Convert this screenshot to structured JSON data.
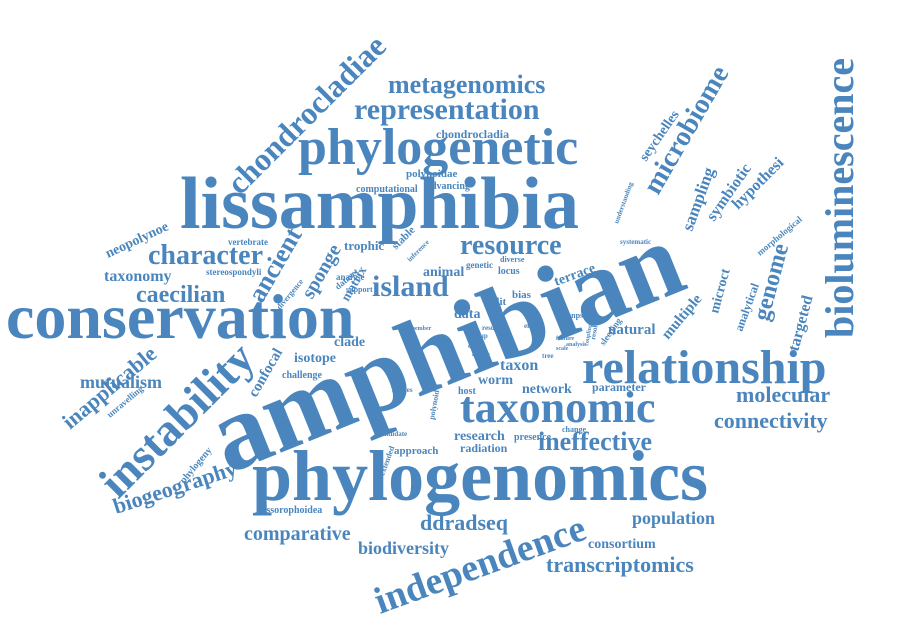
{
  "colors": {
    "word": "#4a86bd",
    "background": "#ffffff"
  },
  "words": {
    "amphibian": "amphibian",
    "phylogenomics": "phylogenomics",
    "lissamphibia": "lissamphibia",
    "conservation": "conservation",
    "phylogenetic": "phylogenetic",
    "bioluminescence": "bioluminescence",
    "relationship": "relationship",
    "taxonomic": "taxonomic",
    "instability": "instability",
    "independence": "independence",
    "chondrocladiae": "chondrocladiae",
    "representation": "representation",
    "metagenomics": "metagenomics",
    "microbiome": "microbiome",
    "resource": "resource",
    "island": "island",
    "character": "character",
    "caecilian": "caecilian",
    "ancient": "ancient",
    "sponge": "sponge",
    "taxonomy": "taxonomy",
    "ineffective": "ineffective",
    "connectivity": "connectivity",
    "molecular": "molecular",
    "biogeography": "biogeography",
    "inapplicable": "inapplicable",
    "mutualism": "mutualism",
    "comparative": "comparative",
    "biodiversity": "biodiversity",
    "ddradseq": "ddradseq",
    "population": "population",
    "consortium": "consortium",
    "transcriptomics": "transcriptomics",
    "genome": "genome",
    "targeted": "targeted",
    "natural": "natural",
    "multiple": "multiple",
    "sampling": "sampling",
    "symbiotic": "symbiotic",
    "hypothesi": "hypothesi",
    "seychelles": "seychelles",
    "chondrocladia": "chondrocladia",
    "polynoidae": "polynoidae",
    "advancing": "advancing",
    "computational": "computational",
    "neopolynoe": "neopolynoe",
    "vertebrate": "vertebrate",
    "trophic": "trophic",
    "stable": "stable",
    "stereospondyli": "stereospondyli",
    "animal": "animal",
    "terrace": "terrace",
    "locus": "locus",
    "diverse": "diverse",
    "genetic": "genetic",
    "matrix": "matrix",
    "dataset": "dataset",
    "isotope": "isotope",
    "clade": "clade",
    "confocal": "confocal",
    "challenge": "challenge",
    "unravelling": "unravelling",
    "phylogeny": "phylogeny",
    "dissorophoidea": "dissorophoidea",
    "approach": "approach",
    "radiation": "radiation",
    "research": "research",
    "presence": "presence",
    "network": "network",
    "parameter": "parameter",
    "worm": "worm",
    "taxon": "taxon",
    "host": "host",
    "data": "data",
    "split": "split",
    "bias": "bias",
    "analysis": "analyse",
    "support": "support",
    "divergence": "divergence",
    "microct": "microct",
    "analytical": "analytical",
    "morphological": "morphological",
    "understanding": "understanding",
    "systematic": "systematic",
    "inference": "inference",
    "sleeping": "sleeping",
    "resolve": "resolve",
    "snps": "snps",
    "extended": "extended",
    "polynoid": "polynoid",
    "candidate": "candidate",
    "studies": "studies",
    "change": "change",
    "group": "group",
    "result": "result",
    "effect": "effect",
    "order": "order",
    "member": "member",
    "tree": "tree",
    "feature": "feature",
    "scale": "scale",
    "history": "history",
    "coupling": "coupling",
    "analysis2": "analysis"
  }
}
